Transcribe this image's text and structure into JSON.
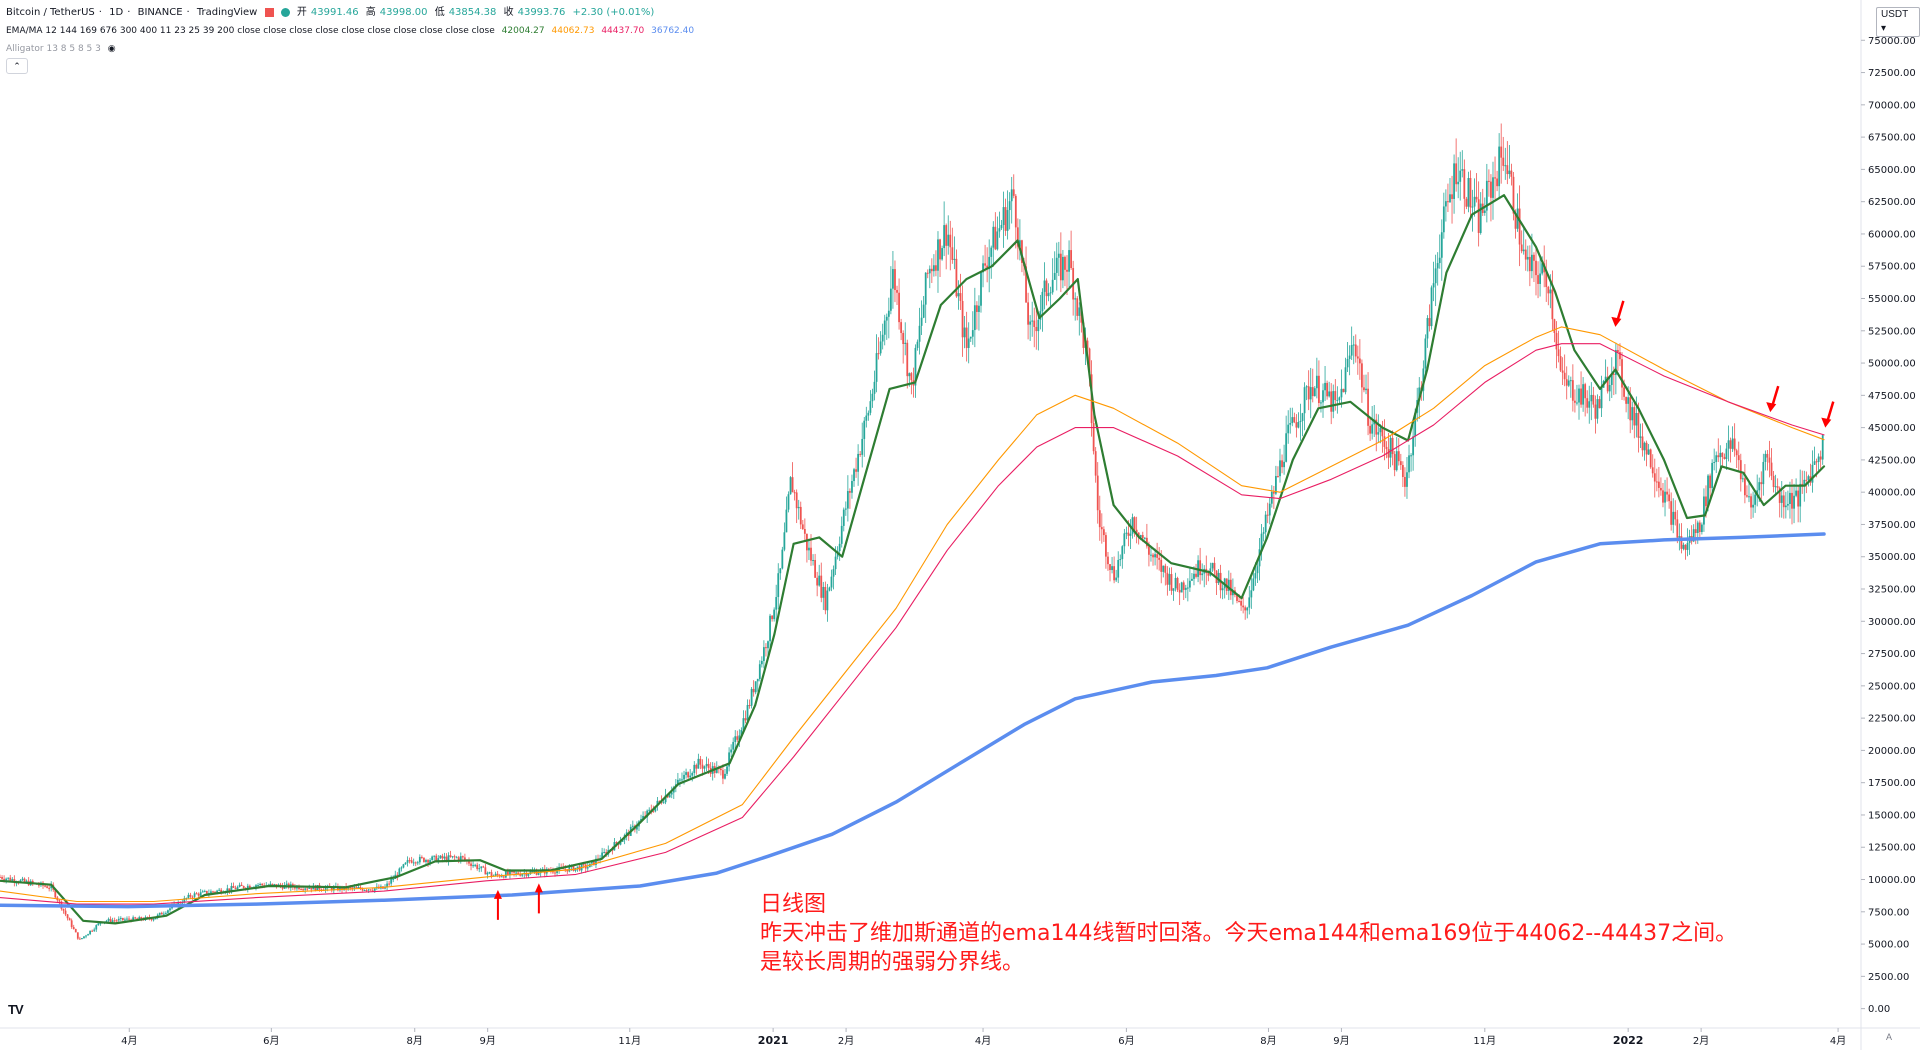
{
  "header": {
    "symbol": "Bitcoin / TetherUS",
    "interval": "1D",
    "exchange": "BINANCE",
    "platform": "TradingView",
    "ohlc": {
      "open_label": "开",
      "open": "43991.46",
      "high_label": "高",
      "high": "43998.00",
      "low_label": "低",
      "low": "43854.38",
      "close_label": "收",
      "close": "43993.76",
      "change": "+2.30 (+0.01%)"
    }
  },
  "indicators": {
    "ema_ma_label": "EMA/MA 12 144 169 676 300 400 11 23 25 39 200 close close close close close close close close close close",
    "ema_ma_values": [
      {
        "value": "42004.27",
        "color": "#2e7d32"
      },
      {
        "value": "44062.73",
        "color": "#ff9800"
      },
      {
        "value": "44437.70",
        "color": "#e91e63"
      },
      {
        "value": "36762.40",
        "color": "#5b8def"
      }
    ],
    "alligator_label": "Alligator 13 8 5 8 5 3"
  },
  "currency_button": "USDT",
  "tv_logo": "TV",
  "auto_button": "A",
  "annotation_lines": [
    "日线图",
    "昨天冲击了维加斯通道的ema144线暂时回落。今天ema144和ema169位于44062--44437之间。",
    "是较长周期的强弱分界线。"
  ],
  "chart_data": {
    "type": "line",
    "title": "Bitcoin / TetherUS · 1D · BINANCE",
    "xlabel": "",
    "ylabel": "",
    "ylim": [
      -1500,
      77500
    ],
    "xlim": [
      0,
      1480
    ],
    "y_ticks": [
      "0.00",
      "2500.00",
      "5000.00",
      "7500.00",
      "10000.00",
      "12500.00",
      "15000.00",
      "17500.00",
      "20000.00",
      "22500.00",
      "25000.00",
      "27500.00",
      "30000.00",
      "32500.00",
      "35000.00",
      "37500.00",
      "40000.00",
      "42500.00",
      "45000.00",
      "47500.00",
      "50000.00",
      "52500.00",
      "55000.00",
      "57500.00",
      "60000.00",
      "62500.00",
      "65000.00",
      "67500.00",
      "70000.00",
      "72500.00",
      "75000.00"
    ],
    "x_ticks": [
      {
        "label": "4月",
        "x": 101
      },
      {
        "label": "6月",
        "x": 212
      },
      {
        "label": "8月",
        "x": 324
      },
      {
        "label": "9月",
        "x": 381
      },
      {
        "label": "11月",
        "x": 492
      },
      {
        "label": "2021",
        "x": 604
      },
      {
        "label": "2月",
        "x": 661
      },
      {
        "label": "4月",
        "x": 768
      },
      {
        "label": "6月",
        "x": 880
      },
      {
        "label": "8月",
        "x": 991
      },
      {
        "label": "9月",
        "x": 1048
      },
      {
        "label": "11月",
        "x": 1160
      },
      {
        "label": "2022",
        "x": 1272
      },
      {
        "label": "2月",
        "x": 1329
      },
      {
        "label": "4月",
        "x": 1436
      }
    ],
    "grid": false,
    "colors": {
      "up": "#26a69a",
      "down": "#ef5350",
      "ema12": "#2e7d32",
      "ema144": "#ff9800",
      "ema169": "#e91e63",
      "ema676": "#5b8def",
      "arrow": "#ff0000"
    },
    "price_path": [
      [
        0,
        10200
      ],
      [
        40,
        9400
      ],
      [
        62,
        5300
      ],
      [
        80,
        6800
      ],
      [
        120,
        7000
      ],
      [
        150,
        8800
      ],
      [
        200,
        9600
      ],
      [
        260,
        9300
      ],
      [
        300,
        9300
      ],
      [
        320,
        11500
      ],
      [
        360,
        11700
      ],
      [
        385,
        10300
      ],
      [
        420,
        10600
      ],
      [
        460,
        11000
      ],
      [
        490,
        13500
      ],
      [
        520,
        16500
      ],
      [
        545,
        19000
      ],
      [
        565,
        18200
      ],
      [
        585,
        23500
      ],
      [
        600,
        29000
      ],
      [
        610,
        34000
      ],
      [
        618,
        41000
      ],
      [
        630,
        36000
      ],
      [
        645,
        31500
      ],
      [
        660,
        38500
      ],
      [
        680,
        47000
      ],
      [
        698,
        57000
      ],
      [
        712,
        48000
      ],
      [
        725,
        57000
      ],
      [
        740,
        60500
      ],
      [
        755,
        51000
      ],
      [
        770,
        58000
      ],
      [
        792,
        63000
      ],
      [
        805,
        52000
      ],
      [
        820,
        56500
      ],
      [
        835,
        58000
      ],
      [
        850,
        50000
      ],
      [
        858,
        38000
      ],
      [
        870,
        33500
      ],
      [
        885,
        38000
      ],
      [
        900,
        35000
      ],
      [
        920,
        32500
      ],
      [
        940,
        34500
      ],
      [
        960,
        32500
      ],
      [
        972,
        30500
      ],
      [
        990,
        38000
      ],
      [
        1005,
        44000
      ],
      [
        1025,
        48500
      ],
      [
        1045,
        46500
      ],
      [
        1058,
        52000
      ],
      [
        1070,
        45500
      ],
      [
        1085,
        43500
      ],
      [
        1098,
        41000
      ],
      [
        1110,
        48500
      ],
      [
        1123,
        58500
      ],
      [
        1138,
        65500
      ],
      [
        1155,
        61000
      ],
      [
        1175,
        66500
      ],
      [
        1192,
        57500
      ],
      [
        1210,
        56500
      ],
      [
        1220,
        48500
      ],
      [
        1235,
        47500
      ],
      [
        1248,
        46500
      ],
      [
        1262,
        50500
      ],
      [
        1275,
        46000
      ],
      [
        1290,
        42500
      ],
      [
        1305,
        38500
      ],
      [
        1315,
        35500
      ],
      [
        1328,
        37500
      ],
      [
        1340,
        43000
      ],
      [
        1355,
        43500
      ],
      [
        1368,
        38500
      ],
      [
        1380,
        43000
      ],
      [
        1390,
        39500
      ],
      [
        1405,
        39500
      ],
      [
        1425,
        44000
      ]
    ],
    "ema_points": [
      {
        "name": "EMA12",
        "points": [
          [
            0,
            9900
          ],
          [
            40,
            9600
          ],
          [
            65,
            6800
          ],
          [
            90,
            6600
          ],
          [
            130,
            7200
          ],
          [
            160,
            8800
          ],
          [
            210,
            9500
          ],
          [
            270,
            9400
          ],
          [
            310,
            10200
          ],
          [
            340,
            11400
          ],
          [
            375,
            11500
          ],
          [
            395,
            10700
          ],
          [
            430,
            10700
          ],
          [
            470,
            11600
          ],
          [
            500,
            14400
          ],
          [
            530,
            17400
          ],
          [
            570,
            19000
          ],
          [
            590,
            23500
          ],
          [
            605,
            29000
          ],
          [
            620,
            36000
          ],
          [
            640,
            36500
          ],
          [
            658,
            35000
          ],
          [
            675,
            41000
          ],
          [
            695,
            48000
          ],
          [
            715,
            48500
          ],
          [
            735,
            54500
          ],
          [
            755,
            56500
          ],
          [
            775,
            57500
          ],
          [
            795,
            59500
          ],
          [
            812,
            53500
          ],
          [
            828,
            55000
          ],
          [
            842,
            56500
          ],
          [
            855,
            46000
          ],
          [
            870,
            39000
          ],
          [
            890,
            36500
          ],
          [
            915,
            34500
          ],
          [
            945,
            33800
          ],
          [
            970,
            31800
          ],
          [
            990,
            36500
          ],
          [
            1010,
            42500
          ],
          [
            1030,
            46500
          ],
          [
            1055,
            47000
          ],
          [
            1080,
            45000
          ],
          [
            1100,
            44000
          ],
          [
            1115,
            49500
          ],
          [
            1130,
            57000
          ],
          [
            1150,
            61500
          ],
          [
            1175,
            63000
          ],
          [
            1200,
            59000
          ],
          [
            1215,
            55500
          ],
          [
            1230,
            51000
          ],
          [
            1250,
            48000
          ],
          [
            1262,
            49500
          ],
          [
            1280,
            46500
          ],
          [
            1300,
            42500
          ],
          [
            1318,
            38000
          ],
          [
            1332,
            38200
          ],
          [
            1345,
            42000
          ],
          [
            1362,
            41500
          ],
          [
            1378,
            39000
          ],
          [
            1395,
            40500
          ],
          [
            1410,
            40500
          ],
          [
            1425,
            42000
          ]
        ]
      },
      {
        "name": "EMA144",
        "points": [
          [
            0,
            9100
          ],
          [
            60,
            8300
          ],
          [
            120,
            8300
          ],
          [
            200,
            8900
          ],
          [
            300,
            9400
          ],
          [
            380,
            10200
          ],
          [
            450,
            10800
          ],
          [
            520,
            12800
          ],
          [
            580,
            15800
          ],
          [
            620,
            21000
          ],
          [
            660,
            26000
          ],
          [
            700,
            31000
          ],
          [
            740,
            37500
          ],
          [
            780,
            42500
          ],
          [
            810,
            46000
          ],
          [
            840,
            47500
          ],
          [
            870,
            46500
          ],
          [
            920,
            43800
          ],
          [
            970,
            40500
          ],
          [
            1000,
            40000
          ],
          [
            1040,
            42000
          ],
          [
            1080,
            44000
          ],
          [
            1120,
            46500
          ],
          [
            1160,
            49800
          ],
          [
            1200,
            52000
          ],
          [
            1220,
            52800
          ],
          [
            1250,
            52200
          ],
          [
            1300,
            49500
          ],
          [
            1350,
            47000
          ],
          [
            1400,
            45000
          ],
          [
            1425,
            44062
          ]
        ]
      },
      {
        "name": "EMA169",
        "points": [
          [
            0,
            8600
          ],
          [
            60,
            8100
          ],
          [
            120,
            8100
          ],
          [
            200,
            8600
          ],
          [
            300,
            9100
          ],
          [
            380,
            9900
          ],
          [
            450,
            10400
          ],
          [
            520,
            12100
          ],
          [
            580,
            14800
          ],
          [
            620,
            19500
          ],
          [
            660,
            24500
          ],
          [
            700,
            29500
          ],
          [
            740,
            35500
          ],
          [
            780,
            40500
          ],
          [
            810,
            43500
          ],
          [
            840,
            45000
          ],
          [
            870,
            45000
          ],
          [
            920,
            42800
          ],
          [
            970,
            39800
          ],
          [
            1000,
            39500
          ],
          [
            1040,
            41000
          ],
          [
            1080,
            42800
          ],
          [
            1120,
            45200
          ],
          [
            1160,
            48500
          ],
          [
            1200,
            51000
          ],
          [
            1220,
            51500
          ],
          [
            1250,
            51500
          ],
          [
            1300,
            49000
          ],
          [
            1350,
            47000
          ],
          [
            1400,
            45200
          ],
          [
            1425,
            44437
          ]
        ]
      },
      {
        "name": "EMA676",
        "points": [
          [
            0,
            8000
          ],
          [
            100,
            7900
          ],
          [
            200,
            8100
          ],
          [
            300,
            8400
          ],
          [
            400,
            8800
          ],
          [
            500,
            9500
          ],
          [
            560,
            10500
          ],
          [
            600,
            11800
          ],
          [
            650,
            13500
          ],
          [
            700,
            16000
          ],
          [
            750,
            19000
          ],
          [
            800,
            22000
          ],
          [
            840,
            24000
          ],
          [
            900,
            25300
          ],
          [
            950,
            25800
          ],
          [
            990,
            26400
          ],
          [
            1040,
            28000
          ],
          [
            1100,
            29700
          ],
          [
            1150,
            32000
          ],
          [
            1200,
            34600
          ],
          [
            1250,
            36000
          ],
          [
            1300,
            36300
          ],
          [
            1360,
            36500
          ],
          [
            1425,
            36762
          ]
        ]
      }
    ],
    "arrows": [
      {
        "x": 389,
        "y": 9200,
        "direction": "up"
      },
      {
        "x": 421,
        "y": 9700,
        "direction": "up"
      },
      {
        "x": 1262,
        "y": 52800,
        "direction": "down"
      },
      {
        "x": 1383,
        "y": 46200,
        "direction": "down"
      },
      {
        "x": 1426,
        "y": 45000,
        "direction": "down"
      }
    ]
  }
}
